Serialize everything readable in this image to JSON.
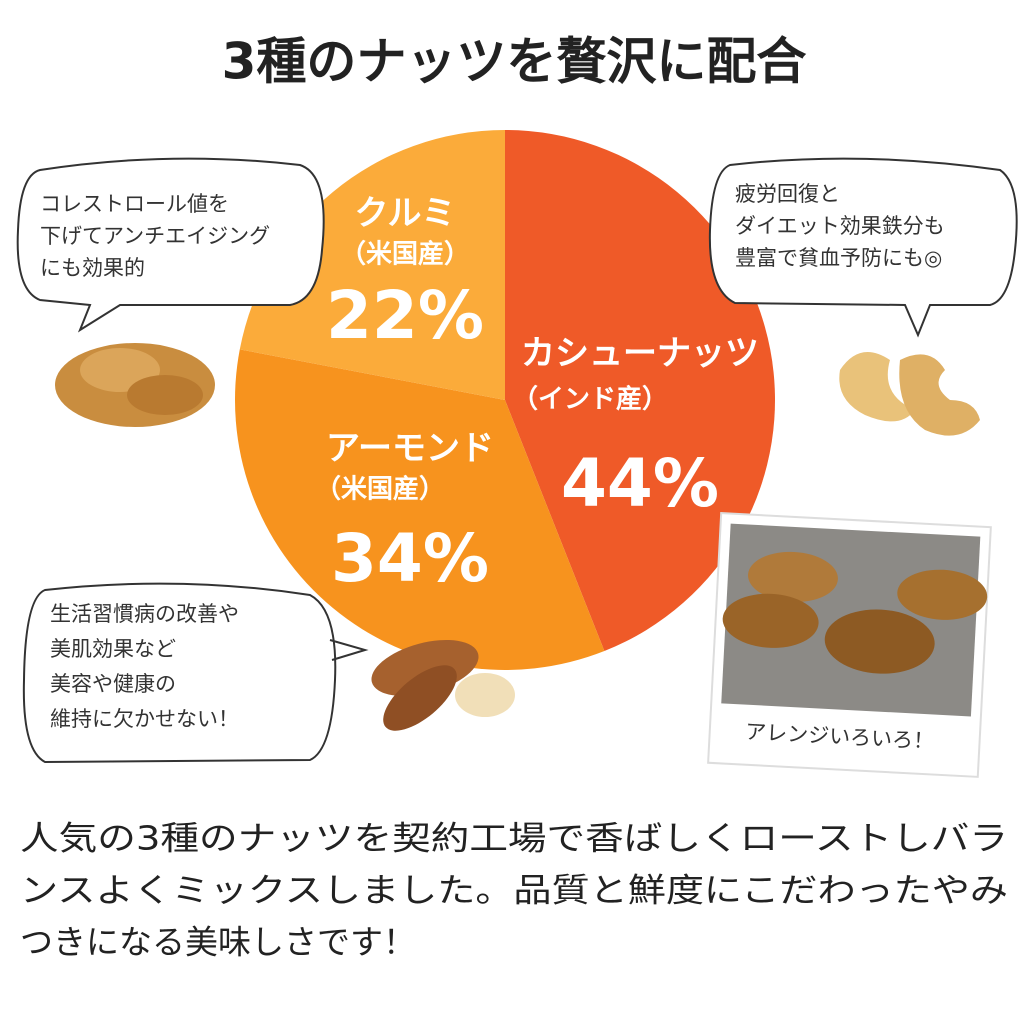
{
  "chart_data": {
    "type": "pie",
    "title": "3種のナッツを贅沢に配合",
    "categories": [
      "カシューナッツ",
      "アーモンド",
      "クルミ"
    ],
    "origins": [
      "（インド産）",
      "（米国産）",
      "（米国産）"
    ],
    "values": [
      44,
      34,
      22
    ],
    "value_labels": [
      "44%",
      "34%",
      "22%"
    ],
    "colors": [
      "#ef5a28",
      "#f7931e",
      "#fbab3a"
    ],
    "annotations": [
      {
        "lines": [
          "コレストロール値を",
          "下げてアンチエイジング",
          "にも効果的"
        ]
      },
      {
        "lines": [
          "疲労回復と",
          "ダイエット効果鉄分も",
          "豊富で貧血予防にも◎"
        ]
      },
      {
        "lines": [
          "生活習慣病の改善や",
          "美肌効果など",
          "美容や健康の",
          "維持に欠かせない！"
        ]
      }
    ],
    "photo_caption": "アレンジいろいろ！",
    "description": [
      "人気の3種のナッツを契約工場で香ばしくローストしバラ",
      "ンスよくミックスしました。品質と鮮度にこだわったやみ",
      "つきになる美味しさです！"
    ]
  }
}
